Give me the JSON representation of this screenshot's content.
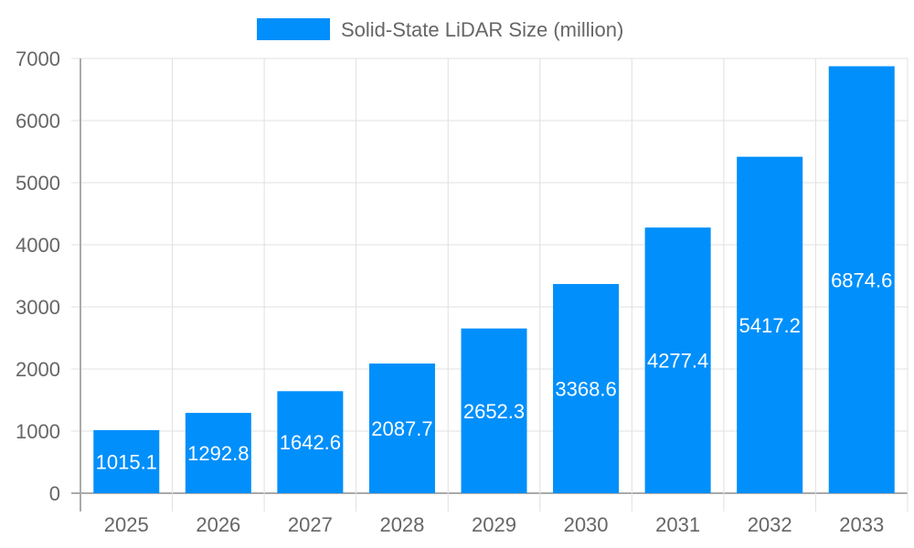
{
  "chart_data": {
    "type": "bar",
    "title": "",
    "xlabel": "",
    "ylabel": "",
    "categories": [
      "2025",
      "2026",
      "2027",
      "2028",
      "2029",
      "2030",
      "2031",
      "2032",
      "2033"
    ],
    "series": [
      {
        "name": "Solid-State LiDAR Size (million)",
        "values": [
          1015.1,
          1292.8,
          1642.6,
          2087.7,
          2652.3,
          3368.6,
          4277.4,
          5417.2,
          6874.6
        ],
        "color": "#008ffb"
      }
    ],
    "ylim": [
      0,
      7000
    ],
    "yticks": [
      "0",
      "1000",
      "2000",
      "3000",
      "4000",
      "5000",
      "6000",
      "7000"
    ],
    "grid": true,
    "legend": "top",
    "data_labels": [
      "1015.1",
      "1292.8",
      "1642.6",
      "2087.7",
      "2652.3",
      "3368.6",
      "4277.4",
      "5417.2",
      "6874.6"
    ]
  }
}
